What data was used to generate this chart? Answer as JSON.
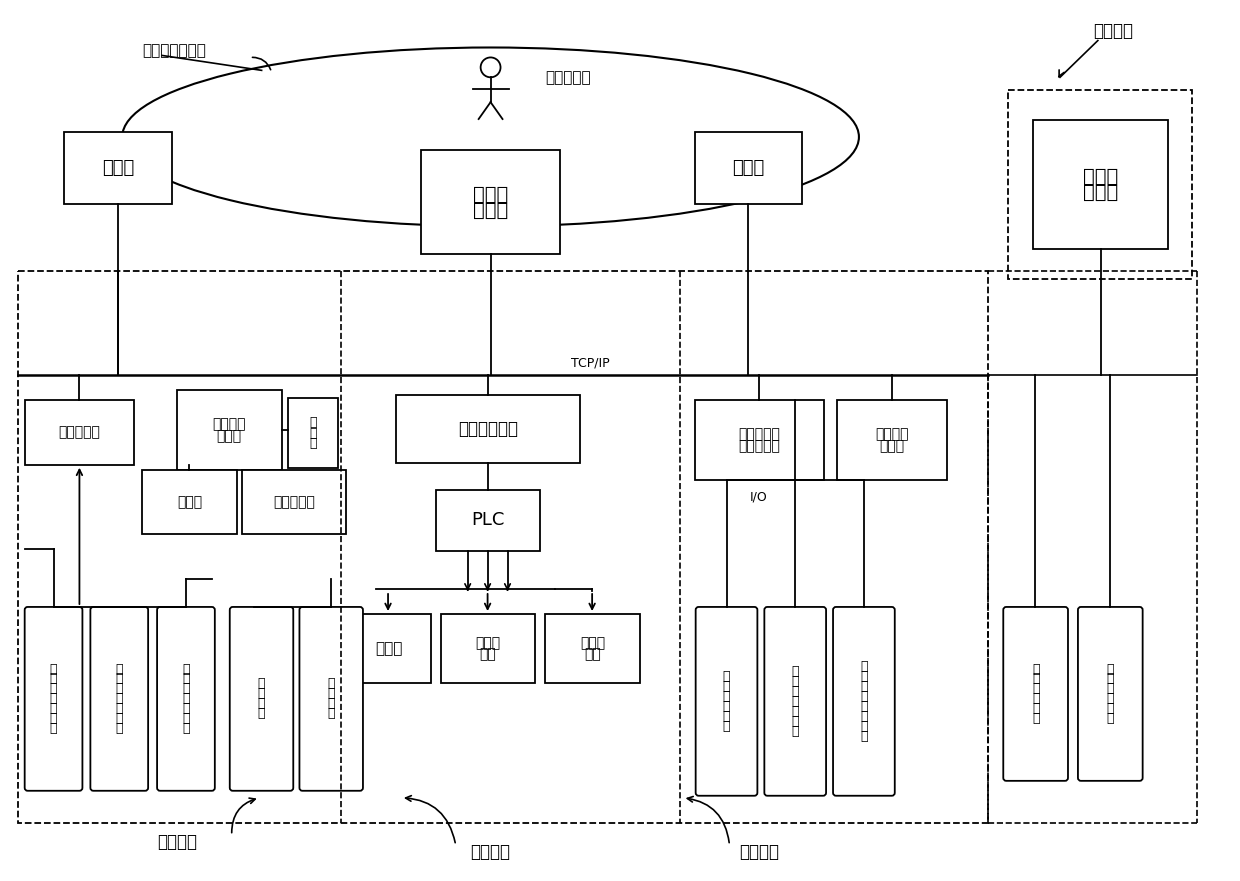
{
  "bg_color": "#ffffff",
  "label_cekong": "测控及保护系统",
  "label_qita": "其他系统",
  "label_measure": "测量系统",
  "label_control": "控制系统",
  "label_protect": "保护系统",
  "label_tcpip": "TCP/IP",
  "label_io": "I/O",
  "label_renyuan": "人员工作站"
}
